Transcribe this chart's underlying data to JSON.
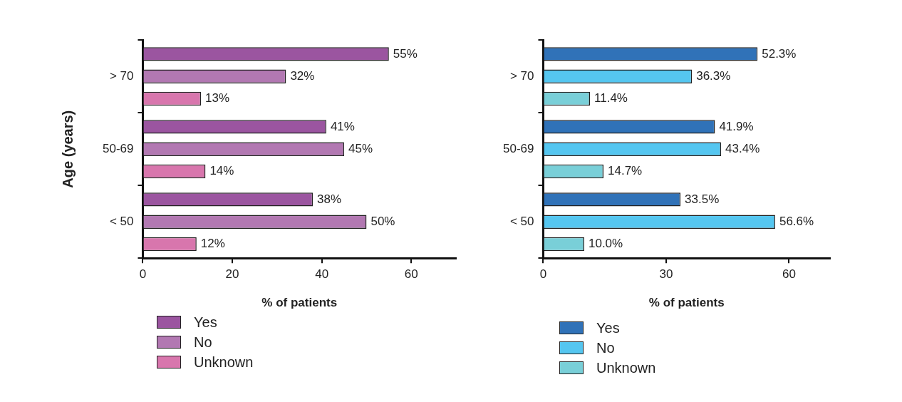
{
  "chart_data": [
    {
      "type": "bar",
      "orientation": "horizontal",
      "ylabel": "Age (years)",
      "xlabel": "% of patients",
      "categories": [
        "> 70",
        "50-69",
        "< 50"
      ],
      "xlim": [
        0,
        70
      ],
      "xticks": [
        0,
        20,
        40,
        60
      ],
      "legend": "bottom left",
      "grid": false,
      "series": [
        {
          "name": "Yes",
          "color": "#9b55a0",
          "values": [
            55,
            41,
            38
          ],
          "value_labels": [
            "55%",
            "41%",
            "38%"
          ]
        },
        {
          "name": "No",
          "color": "#b278b2",
          "values": [
            32,
            45,
            50
          ],
          "value_labels": [
            "32%",
            "45%",
            "50%"
          ]
        },
        {
          "name": "Unknown",
          "color": "#d876ad",
          "values": [
            13,
            14,
            12
          ],
          "value_labels": [
            "13%",
            "14%",
            "12%"
          ]
        }
      ]
    },
    {
      "type": "bar",
      "orientation": "horizontal",
      "xlabel": "% of patients",
      "categories": [
        "> 70",
        "50-69",
        "< 50"
      ],
      "xlim": [
        0,
        70
      ],
      "xticks": [
        0,
        30,
        60
      ],
      "legend": "bottom left",
      "grid": false,
      "series": [
        {
          "name": "Yes",
          "color": "#3072b8",
          "values": [
            52.3,
            41.9,
            33.5
          ],
          "value_labels": [
            "52.3%",
            "41.9%",
            "33.5%"
          ]
        },
        {
          "name": "No",
          "color": "#55c6f0",
          "values": [
            36.3,
            43.4,
            56.6
          ],
          "value_labels": [
            "36.3%",
            "43.4%",
            "56.6%"
          ]
        },
        {
          "name": "Unknown",
          "color": "#79cfd8",
          "values": [
            11.4,
            14.7,
            10.0
          ],
          "value_labels": [
            "11.4%",
            "14.7%",
            "10.0%"
          ]
        }
      ]
    }
  ]
}
